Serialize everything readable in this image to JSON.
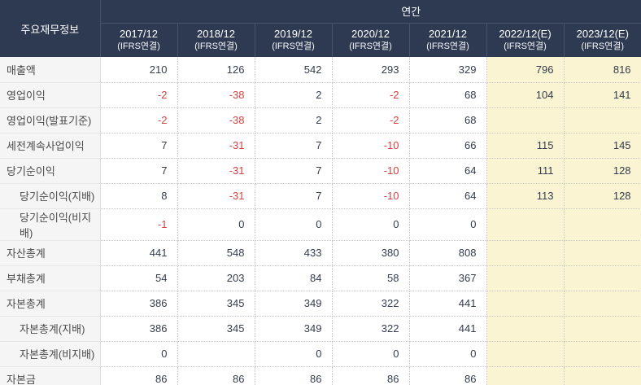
{
  "header": {
    "corner_label": "주요재무정보",
    "group_label": "연간",
    "columns": [
      {
        "period": "2017/12",
        "basis": "(IFRS연결)",
        "estimate": false
      },
      {
        "period": "2018/12",
        "basis": "(IFRS연결)",
        "estimate": false
      },
      {
        "period": "2019/12",
        "basis": "(IFRS연결)",
        "estimate": false
      },
      {
        "period": "2020/12",
        "basis": "(IFRS연결)",
        "estimate": false
      },
      {
        "period": "2021/12",
        "basis": "(IFRS연결)",
        "estimate": false
      },
      {
        "period": "2022/12(E)",
        "basis": "(IFRS연결)",
        "estimate": true
      },
      {
        "period": "2023/12(E)",
        "basis": "(IFRS연결)",
        "estimate": true
      }
    ]
  },
  "table": {
    "rows": [
      {
        "label": "매출액",
        "indent": false,
        "values": [
          "210",
          "126",
          "542",
          "293",
          "329",
          "796",
          "816"
        ]
      },
      {
        "label": "영업이익",
        "indent": false,
        "values": [
          "-2",
          "-38",
          "2",
          "-2",
          "68",
          "104",
          "141"
        ]
      },
      {
        "label": "영업이익(발표기준)",
        "indent": false,
        "values": [
          "-2",
          "-38",
          "2",
          "-2",
          "68",
          "",
          ""
        ]
      },
      {
        "label": "세전계속사업이익",
        "indent": false,
        "values": [
          "7",
          "-31",
          "7",
          "-10",
          "66",
          "115",
          "145"
        ]
      },
      {
        "label": "당기순이익",
        "indent": false,
        "values": [
          "7",
          "-31",
          "7",
          "-10",
          "64",
          "111",
          "128"
        ]
      },
      {
        "label": "당기순이익(지배)",
        "indent": true,
        "values": [
          "8",
          "-31",
          "7",
          "-10",
          "64",
          "113",
          "128"
        ]
      },
      {
        "label": "당기순이익(비지배)",
        "indent": true,
        "values": [
          "-1",
          "0",
          "0",
          "0",
          "0",
          "",
          ""
        ]
      },
      {
        "label": "자산총계",
        "indent": false,
        "values": [
          "441",
          "548",
          "433",
          "380",
          "808",
          "",
          ""
        ]
      },
      {
        "label": "부채총계",
        "indent": false,
        "values": [
          "54",
          "203",
          "84",
          "58",
          "367",
          "",
          ""
        ]
      },
      {
        "label": "자본총계",
        "indent": false,
        "values": [
          "386",
          "345",
          "349",
          "322",
          "441",
          "",
          ""
        ]
      },
      {
        "label": "자본총계(지배)",
        "indent": true,
        "values": [
          "386",
          "345",
          "349",
          "322",
          "441",
          "",
          ""
        ]
      },
      {
        "label": "자본총계(비지배)",
        "indent": true,
        "values": [
          "0",
          "",
          "0",
          "0",
          "0",
          "",
          ""
        ]
      },
      {
        "label": "자본금",
        "indent": false,
        "values": [
          "86",
          "86",
          "86",
          "86",
          "86",
          "",
          ""
        ]
      }
    ]
  },
  "colors": {
    "header_bg": "#2d3a52",
    "header_line": "#47536a",
    "estimate_bg": "#faf4d3",
    "negative": "#d84040"
  }
}
